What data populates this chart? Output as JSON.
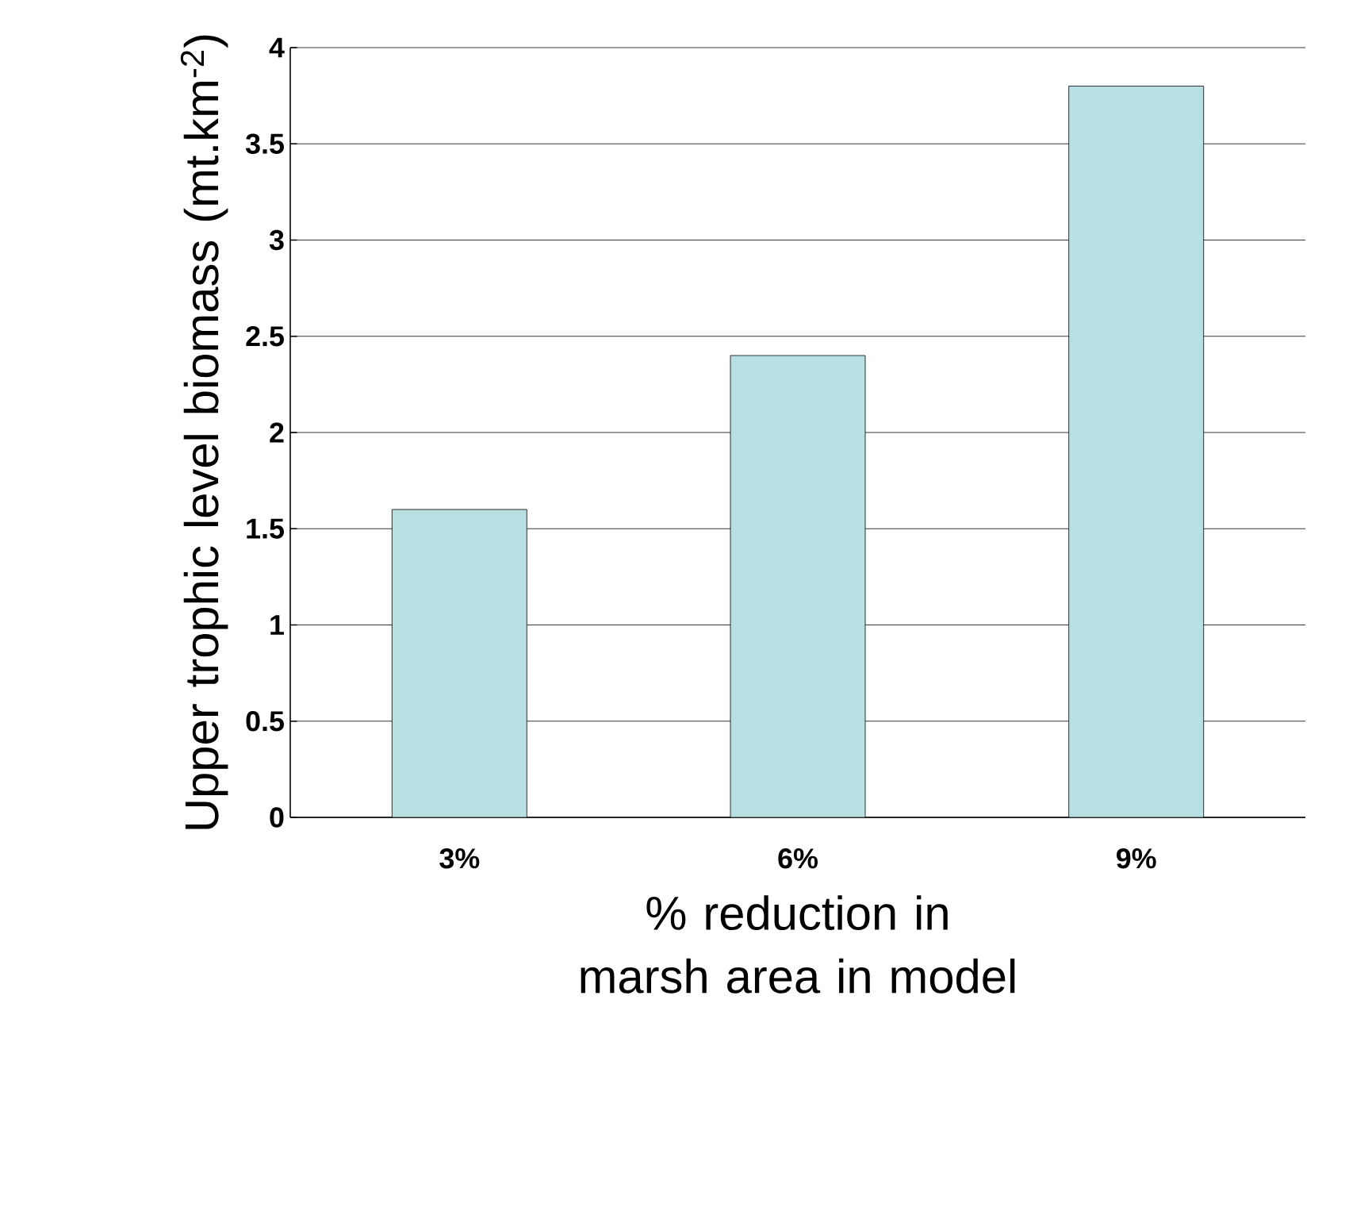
{
  "chart_data": {
    "type": "bar",
    "xlabel": "% reduction in marsh area in model",
    "ylabel": "Upper trophic level biomass (mt.km$^{-2}$)",
    "categories": [
      "3%",
      "6%",
      "9%"
    ],
    "values": [
      1.6,
      2.4,
      3.8
    ],
    "color": "#b8e0e3",
    "ylim": [
      0,
      4
    ],
    "yticks": [
      0,
      0.5,
      1,
      1.5,
      2,
      2.5,
      3,
      3.5,
      4
    ],
    "grid": "y"
  }
}
